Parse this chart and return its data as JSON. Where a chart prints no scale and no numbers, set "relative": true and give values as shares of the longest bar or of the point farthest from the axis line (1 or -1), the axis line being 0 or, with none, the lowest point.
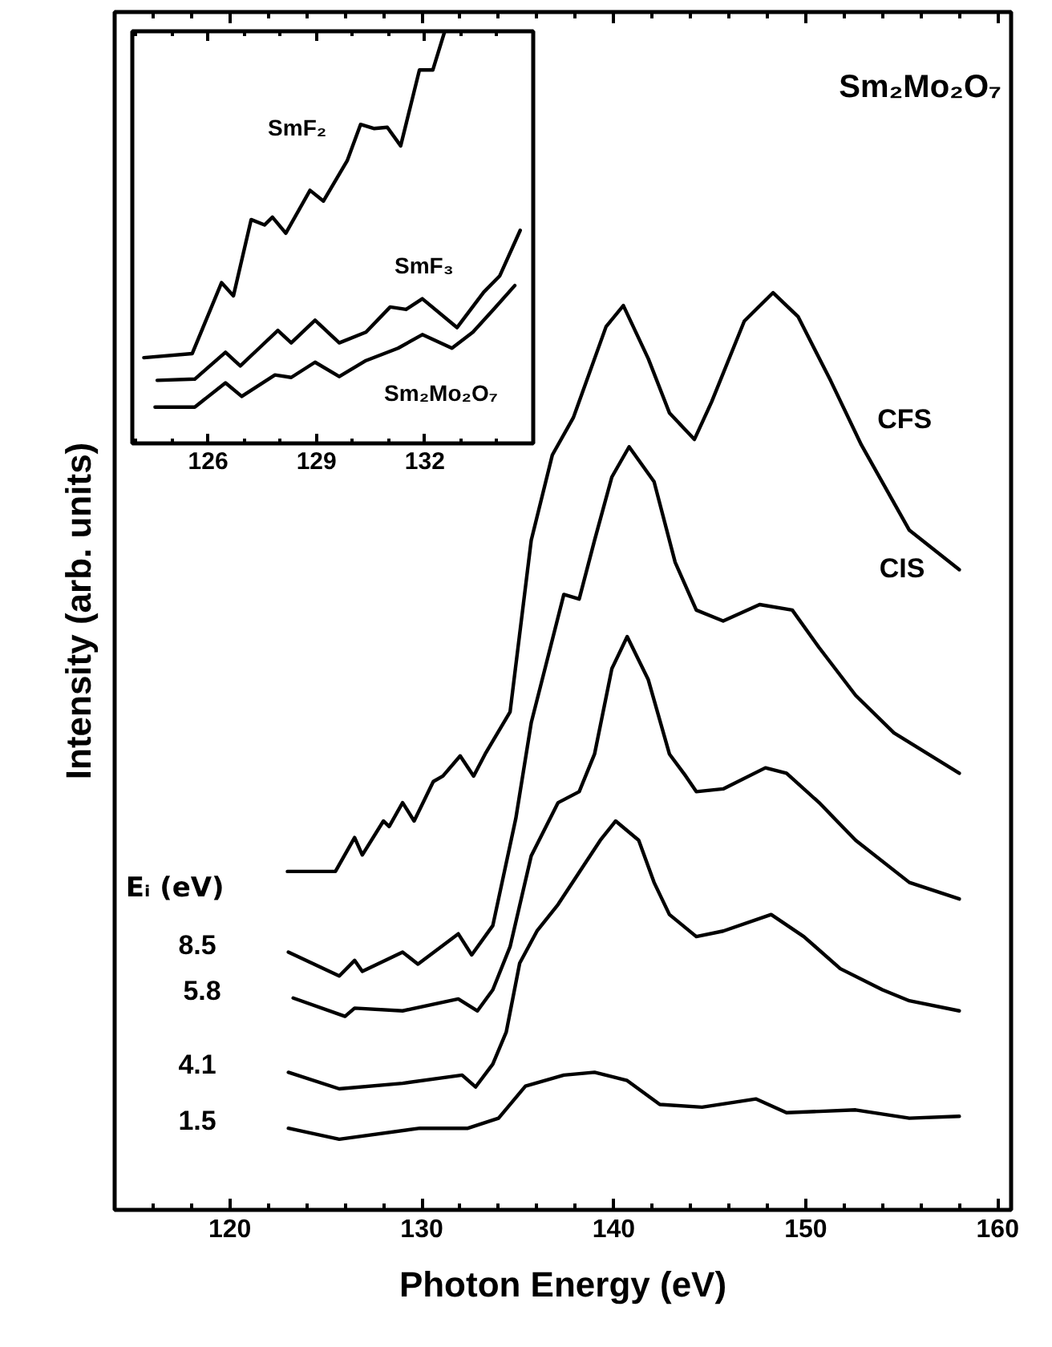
{
  "chart_data": [
    {
      "type": "line",
      "title": "Sm₂Mo₂O₇",
      "xlabel": "Photon Energy (eV)",
      "ylabel": "Intensity (arb. units)",
      "legend_title": "Eᵢ (eV)",
      "relative": true,
      "tick_labels": "x",
      "grid": false,
      "xlim": [
        114,
        160.7
      ],
      "xticks": [
        {
          "value": 116,
          "label": null
        },
        {
          "value": 118,
          "label": null
        },
        120,
        {
          "value": 122,
          "label": null
        },
        {
          "value": 124,
          "label": null
        },
        {
          "value": 126,
          "label": null
        },
        {
          "value": 128,
          "label": null
        },
        130,
        {
          "value": 132,
          "label": null
        },
        {
          "value": 134,
          "label": null
        },
        {
          "value": 136,
          "label": null
        },
        {
          "value": 138,
          "label": null
        },
        140,
        {
          "value": 142,
          "label": null
        },
        {
          "value": 144,
          "label": null
        },
        {
          "value": 146,
          "label": null
        },
        {
          "value": 148,
          "label": null
        },
        150,
        {
          "value": 152,
          "label": null
        },
        {
          "value": 154,
          "label": null
        },
        {
          "value": 156,
          "label": null
        },
        {
          "value": 158,
          "label": null
        },
        160
      ],
      "annotations": [
        "CIS"
      ],
      "series": [
        {
          "name": "CFS",
          "color": "#000000",
          "x": [
            123,
            125.5,
            126.5,
            126.9,
            128.0,
            128.3,
            129.0,
            129.6,
            130.6,
            131.1,
            132.0,
            132.7,
            133.3,
            134.6,
            135.7,
            136.8,
            137.9,
            139.6,
            140.5,
            141.8,
            142.9,
            144.2,
            145.1,
            146.8,
            148.3,
            149.6,
            151.3,
            152.9,
            155.4,
            158
          ],
          "values": [
            0.369,
            0.369,
            0.406,
            0.387,
            0.424,
            0.418,
            0.444,
            0.424,
            0.467,
            0.473,
            0.495,
            0.473,
            0.497,
            0.543,
            0.73,
            0.823,
            0.864,
            0.963,
            0.986,
            0.928,
            0.869,
            0.84,
            0.881,
            0.969,
            1.0,
            0.974,
            0.904,
            0.834,
            0.741,
            0.698
          ]
        },
        {
          "name": "8.5",
          "color": "#000000",
          "x": [
            123.05,
            125.7,
            126.5,
            126.9,
            129.0,
            129.8,
            131.9,
            132.6,
            133.7,
            134.9,
            135.7,
            137.4,
            138.2,
            139.0,
            139.9,
            140.8,
            142.1,
            143.2,
            144.3,
            145.7,
            147.6,
            149.3,
            150.7,
            152.6,
            154.6,
            158
          ],
          "values": [
            0.281,
            0.255,
            0.272,
            0.26,
            0.281,
            0.268,
            0.301,
            0.278,
            0.31,
            0.427,
            0.531,
            0.671,
            0.666,
            0.73,
            0.799,
            0.832,
            0.794,
            0.706,
            0.654,
            0.642,
            0.66,
            0.654,
            0.613,
            0.561,
            0.52,
            0.476
          ]
        },
        {
          "name": "5.8",
          "color": "#000000",
          "x": [
            123.3,
            126.0,
            126.5,
            129.0,
            131.9,
            132.9,
            133.7,
            134.6,
            135.7,
            137.1,
            138.2,
            139.0,
            139.9,
            140.7,
            141.8,
            142.9,
            143.75,
            144.3,
            145.7,
            147.9,
            149.0,
            150.7,
            152.6,
            155.4,
            158
          ],
          "values": [
            0.231,
            0.211,
            0.22,
            0.217,
            0.23,
            0.217,
            0.24,
            0.287,
            0.386,
            0.444,
            0.456,
            0.497,
            0.59,
            0.625,
            0.578,
            0.497,
            0.473,
            0.456,
            0.459,
            0.482,
            0.476,
            0.444,
            0.403,
            0.357,
            0.339
          ]
        },
        {
          "name": "4.1",
          "color": "#000000",
          "x": [
            123.05,
            125.7,
            129.0,
            132.1,
            132.8,
            133.7,
            134.4,
            135.1,
            136.0,
            137.1,
            138.2,
            139.3,
            140.1,
            141.3,
            142.1,
            142.9,
            144.3,
            145.7,
            148.2,
            149.9,
            151.8,
            154.0,
            155.4,
            158
          ],
          "values": [
            0.15,
            0.132,
            0.138,
            0.147,
            0.134,
            0.159,
            0.194,
            0.269,
            0.304,
            0.333,
            0.368,
            0.403,
            0.424,
            0.403,
            0.357,
            0.322,
            0.298,
            0.304,
            0.322,
            0.298,
            0.263,
            0.24,
            0.228,
            0.217
          ]
        },
        {
          "name": "1.5",
          "color": "#000000",
          "x": [
            123.05,
            125.7,
            129.9,
            132.4,
            134.0,
            135.4,
            137.4,
            139.0,
            140.7,
            142.4,
            144.6,
            147.4,
            149.0,
            152.6,
            155.4,
            158
          ],
          "values": [
            0.089,
            0.077,
            0.089,
            0.089,
            0.1,
            0.135,
            0.147,
            0.15,
            0.141,
            0.115,
            0.112,
            0.121,
            0.106,
            0.109,
            0.1,
            0.102
          ]
        }
      ]
    },
    {
      "type": "line",
      "relative": true,
      "tick_labels": "x",
      "grid": false,
      "xlim": [
        123.9,
        135.0
      ],
      "xticks": [
        {
          "value": 124,
          "label": null
        },
        {
          "value": 125,
          "label": null
        },
        126,
        {
          "value": 127,
          "label": null
        },
        {
          "value": 128,
          "label": null
        },
        129,
        {
          "value": 130,
          "label": null
        },
        {
          "value": 131,
          "label": null
        },
        132,
        {
          "value": 133,
          "label": null
        },
        {
          "value": 134,
          "label": null
        }
      ],
      "series": [
        {
          "name": "SmF₂",
          "color": "#000000",
          "x": [
            124.22,
            125.56,
            126.37,
            126.7,
            127.19,
            127.56,
            127.78,
            128.15,
            128.82,
            129.19,
            129.85,
            130.22,
            130.6,
            130.96,
            131.33,
            131.85,
            132.22,
            132.55
          ],
          "values": [
            0.208,
            0.218,
            0.39,
            0.358,
            0.543,
            0.53,
            0.549,
            0.51,
            0.614,
            0.588,
            0.686,
            0.774,
            0.764,
            0.767,
            0.722,
            0.906,
            0.906,
            1.0
          ]
        },
        {
          "name": "SmF₃",
          "color": "#000000",
          "x": [
            124.59,
            125.63,
            126.48,
            126.89,
            127.41,
            127.93,
            128.3,
            128.96,
            129.63,
            130.37,
            131.04,
            131.48,
            131.93,
            132.89,
            133.63,
            134.07,
            134.64
          ],
          "values": [
            0.153,
            0.156,
            0.221,
            0.188,
            0.231,
            0.274,
            0.244,
            0.299,
            0.244,
            0.27,
            0.331,
            0.325,
            0.351,
            0.281,
            0.367,
            0.406,
            0.517
          ]
        },
        {
          "name": "Sm₂Mo₂O₇",
          "color": "#000000",
          "x": [
            124.53,
            125.63,
            126.48,
            126.93,
            127.85,
            128.3,
            128.96,
            129.63,
            130.37,
            131.26,
            131.93,
            132.75,
            133.33,
            133.93,
            134.49
          ],
          "values": [
            0.088,
            0.088,
            0.147,
            0.114,
            0.166,
            0.16,
            0.197,
            0.162,
            0.201,
            0.231,
            0.264,
            0.231,
            0.27,
            0.328,
            0.383
          ]
        }
      ]
    }
  ]
}
